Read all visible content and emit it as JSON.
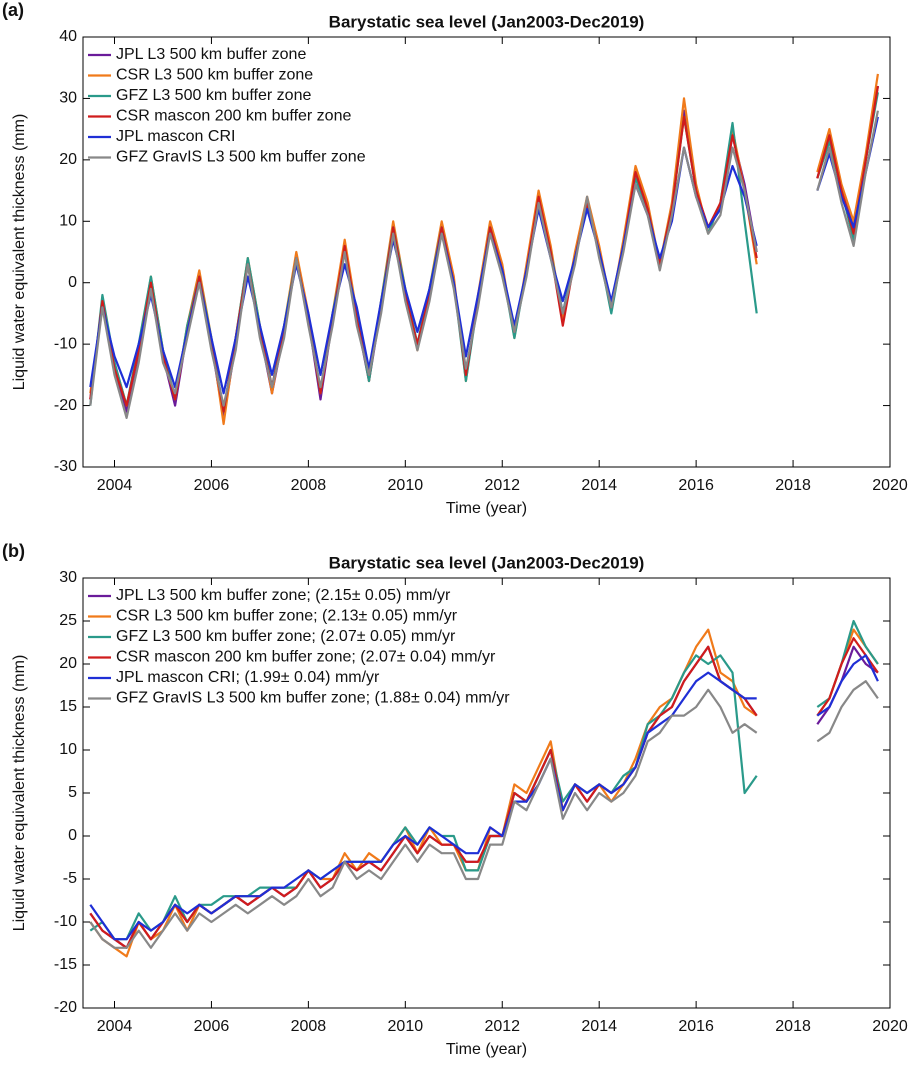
{
  "chart_data": [
    {
      "type": "line",
      "label": "(a)",
      "title": "Barystatic sea level (Jan2003-Dec2019)",
      "xlabel": "Time (year)",
      "ylabel": "Liquid water equivalent thickness (mm)",
      "xlim": [
        2003.35,
        2020
      ],
      "xticks": [
        2004,
        2006,
        2008,
        2010,
        2012,
        2014,
        2016,
        2018,
        2020
      ],
      "ylim": [
        -30,
        40
      ],
      "yticks": [
        -30,
        -20,
        -10,
        0,
        10,
        20,
        30,
        40
      ],
      "legend": "upper left",
      "x": [
        2003.5,
        2003.75,
        2004,
        2004.25,
        2004.5,
        2004.75,
        2005,
        2005.25,
        2005.5,
        2005.75,
        2006,
        2006.25,
        2006.5,
        2006.75,
        2007,
        2007.25,
        2007.5,
        2007.75,
        2008,
        2008.25,
        2008.5,
        2008.75,
        2009,
        2009.25,
        2009.5,
        2009.75,
        2010,
        2010.25,
        2010.5,
        2010.75,
        2011,
        2011.25,
        2011.5,
        2011.75,
        2012,
        2012.25,
        2012.5,
        2012.75,
        2013,
        2013.25,
        2013.5,
        2013.75,
        2014,
        2014.25,
        2014.5,
        2014.75,
        2015,
        2015.25,
        2015.5,
        2015.75,
        2016,
        2016.25,
        2016.5,
        2016.75,
        2017,
        2017.25,
        2017.5,
        2017.75,
        2018,
        2018.25,
        2018.5,
        2018.75,
        2019,
        2019.25,
        2019.5,
        2019.75
      ],
      "series": [
        {
          "name": "JPL L3 500 km buffer zone",
          "color": "#6a1b9a",
          "values": [
            -19,
            -3,
            -14,
            -21,
            -12,
            0,
            -12,
            -20,
            -8,
            1,
            -10,
            -22,
            -10,
            3,
            -8,
            -18,
            -8,
            4,
            -6,
            -19,
            -6,
            5,
            -6,
            -16,
            -4,
            9,
            -2,
            -10,
            -2,
            9,
            0,
            -15,
            -3,
            9,
            2,
            -8,
            2,
            14,
            5,
            -5,
            4,
            13,
            5,
            -4,
            6,
            18,
            12,
            3,
            12,
            28,
            15,
            9,
            12,
            24,
            16,
            5,
            null,
            null,
            null,
            null,
            17,
            24,
            15,
            9,
            20,
            32
          ]
        },
        {
          "name": "CSR L3 500 km buffer zone",
          "color": "#f07a1a",
          "values": [
            -18,
            -4,
            -13,
            -20,
            -11,
            1,
            -11,
            -19,
            -7,
            2,
            -9,
            -23,
            -9,
            4,
            -7,
            -18,
            -7,
            5,
            -5,
            -18,
            -5,
            7,
            -5,
            -16,
            -3,
            10,
            -1,
            -11,
            -1,
            10,
            1,
            -16,
            -2,
            10,
            3,
            -9,
            3,
            15,
            6,
            -6,
            5,
            14,
            6,
            -4,
            7,
            19,
            13,
            3,
            13,
            30,
            16,
            8,
            13,
            25,
            15,
            3,
            null,
            null,
            null,
            null,
            18,
            25,
            16,
            10,
            21,
            34
          ]
        },
        {
          "name": "GFZ L3 500 km buffer zone",
          "color": "#2a9a8a",
          "values": [
            -20,
            -2,
            -13,
            -20,
            -10,
            1,
            -11,
            -19,
            -7,
            1,
            -9,
            -21,
            -9,
            4,
            -7,
            -17,
            -7,
            4,
            -6,
            -18,
            -5,
            5,
            -5,
            -16,
            -3,
            9,
            -1,
            -10,
            -1,
            9,
            0,
            -16,
            -3,
            9,
            2,
            -9,
            2,
            13,
            5,
            -5,
            4,
            13,
            5,
            -5,
            6,
            17,
            12,
            3,
            12,
            27,
            15,
            8,
            13,
            26,
            10,
            -5,
            null,
            null,
            null,
            null,
            17,
            23,
            15,
            7,
            20,
            31
          ]
        },
        {
          "name": "CSR mascon 200 km buffer zone",
          "color": "#d01c1c",
          "values": [
            -19,
            -3,
            -14,
            -20,
            -11,
            0,
            -12,
            -19,
            -8,
            1,
            -10,
            -21,
            -9,
            3,
            -8,
            -17,
            -8,
            4,
            -6,
            -18,
            -6,
            6,
            -6,
            -15,
            -4,
            9,
            -2,
            -10,
            -2,
            9,
            0,
            -15,
            -3,
            9,
            2,
            -8,
            2,
            14,
            5,
            -7,
            4,
            13,
            5,
            -4,
            6,
            18,
            12,
            3,
            12,
            27,
            15,
            9,
            13,
            24,
            15,
            4,
            null,
            null,
            null,
            null,
            17,
            24,
            15,
            8,
            20,
            32
          ]
        },
        {
          "name": "JPL mascon CRI",
          "color": "#1f2fd6",
          "values": [
            -17,
            -4,
            -12,
            -17,
            -10,
            -2,
            -11,
            -17,
            -8,
            0,
            -9,
            -18,
            -9,
            1,
            -7,
            -15,
            -7,
            3,
            -5,
            -15,
            -5,
            3,
            -4,
            -14,
            -3,
            7,
            -1,
            -8,
            -1,
            8,
            0,
            -12,
            -2,
            8,
            2,
            -7,
            2,
            12,
            4,
            -3,
            4,
            12,
            5,
            -3,
            6,
            16,
            11,
            4,
            10,
            22,
            14,
            9,
            12,
            19,
            14,
            6,
            null,
            null,
            null,
            null,
            15,
            21,
            14,
            9,
            18,
            27
          ]
        },
        {
          "name": "GFZ GravIS L3 500 km buffer zone",
          "color": "#888888",
          "values": [
            -20,
            -4,
            -15,
            -22,
            -13,
            -1,
            -13,
            -18,
            -9,
            0,
            -11,
            -20,
            -11,
            3,
            -9,
            -17,
            -9,
            4,
            -7,
            -17,
            -7,
            5,
            -7,
            -15,
            -5,
            8,
            -3,
            -11,
            -3,
            8,
            -1,
            -14,
            -4,
            8,
            1,
            -8,
            1,
            13,
            4,
            -5,
            3,
            14,
            4,
            -4,
            5,
            16,
            11,
            2,
            11,
            22,
            14,
            8,
            11,
            22,
            15,
            5,
            null,
            null,
            null,
            null,
            15,
            22,
            13,
            6,
            18,
            28
          ]
        }
      ]
    },
    {
      "type": "line",
      "label": "(b)",
      "title": "Barystatic sea level (Jan2003-Dec2019)",
      "xlabel": "Time (year)",
      "ylabel": "Liquid water equivalent thickness (mm)",
      "xlim": [
        2003.35,
        2020
      ],
      "xticks": [
        2004,
        2006,
        2008,
        2010,
        2012,
        2014,
        2016,
        2018,
        2020
      ],
      "ylim": [
        -20,
        30
      ],
      "yticks": [
        -20,
        -15,
        -10,
        -5,
        0,
        5,
        10,
        15,
        20,
        25,
        30
      ],
      "legend": "upper left",
      "x": [
        2003.5,
        2003.75,
        2004,
        2004.25,
        2004.5,
        2004.75,
        2005,
        2005.25,
        2005.5,
        2005.75,
        2006,
        2006.25,
        2006.5,
        2006.75,
        2007,
        2007.25,
        2007.5,
        2007.75,
        2008,
        2008.25,
        2008.5,
        2008.75,
        2009,
        2009.25,
        2009.5,
        2009.75,
        2010,
        2010.25,
        2010.5,
        2010.75,
        2011,
        2011.25,
        2011.5,
        2011.75,
        2012,
        2012.25,
        2012.5,
        2012.75,
        2013,
        2013.25,
        2013.5,
        2013.75,
        2014,
        2014.25,
        2014.5,
        2014.75,
        2015,
        2015.25,
        2015.5,
        2015.75,
        2016,
        2016.25,
        2016.5,
        2016.75,
        2017,
        2017.25,
        2017.5,
        2017.75,
        2018,
        2018.25,
        2018.5,
        2018.75,
        2019,
        2019.25,
        2019.5,
        2019.75
      ],
      "series": [
        {
          "name": "JPL L3 500 km buffer zone; (2.15± 0.05) mm/yr",
          "color": "#6a1b9a",
          "values": [
            -9,
            -11,
            -12,
            -13,
            -10,
            -12,
            -10,
            -8,
            -10,
            -8,
            -9,
            -8,
            -7,
            -8,
            -7,
            -6,
            -7,
            -6,
            -4,
            -6,
            -5,
            -3,
            -4,
            -3,
            -4,
            -2,
            0,
            -2,
            0,
            -1,
            -1,
            -3,
            -3,
            0,
            0,
            5,
            4,
            7,
            10,
            3,
            6,
            4,
            6,
            5,
            6,
            8,
            12,
            14,
            15,
            18,
            20,
            22,
            18,
            17,
            16,
            14,
            null,
            null,
            null,
            null,
            13,
            15,
            18,
            22,
            20,
            19
          ]
        },
        {
          "name": "CSR L3 500 km buffer zone; (2.13± 0.05) mm/yr",
          "color": "#f07a1a",
          "values": [
            -10,
            -12,
            -13,
            -14,
            -10,
            -12,
            -11,
            -8,
            -11,
            -8,
            -9,
            -8,
            -7,
            -7,
            -7,
            -6,
            -6,
            -6,
            -4,
            -5,
            -5,
            -2,
            -4,
            -2,
            -3,
            -1,
            1,
            -2,
            1,
            -1,
            -1,
            -4,
            -4,
            1,
            0,
            6,
            5,
            8,
            11,
            3,
            6,
            5,
            6,
            4,
            6,
            9,
            13,
            15,
            16,
            19,
            22,
            24,
            19,
            18,
            15,
            14,
            null,
            null,
            null,
            null,
            14,
            16,
            20,
            24,
            22,
            20
          ]
        },
        {
          "name": "GFZ L3 500 km buffer zone; (2.07± 0.05) mm/yr",
          "color": "#2a9a8a",
          "values": [
            -11,
            -10,
            -12,
            -12,
            -9,
            -11,
            -10,
            -7,
            -10,
            -8,
            -8,
            -7,
            -7,
            -7,
            -6,
            -6,
            -6,
            -6,
            -4,
            -5,
            -4,
            -3,
            -3,
            -3,
            -3,
            -1,
            1,
            -1,
            1,
            0,
            0,
            -4,
            -4,
            0,
            0,
            5,
            4,
            7,
            10,
            4,
            6,
            5,
            6,
            5,
            7,
            8,
            13,
            14,
            16,
            19,
            21,
            20,
            21,
            19,
            5,
            7,
            null,
            null,
            null,
            null,
            15,
            16,
            20,
            25,
            22,
            20
          ]
        },
        {
          "name": "CSR mascon 200 km buffer zone; (2.07± 0.04) mm/yr",
          "color": "#d01c1c",
          "values": [
            -9,
            -11,
            -12,
            -13,
            -10,
            -12,
            -10,
            -8,
            -10,
            -8,
            -9,
            -8,
            -7,
            -8,
            -7,
            -6,
            -7,
            -6,
            -4,
            -6,
            -5,
            -3,
            -4,
            -3,
            -4,
            -2,
            0,
            -2,
            0,
            -1,
            -1,
            -3,
            -3,
            0,
            0,
            5,
            4,
            7,
            10,
            3,
            6,
            4,
            6,
            5,
            6,
            8,
            12,
            14,
            15,
            18,
            20,
            22,
            18,
            17,
            16,
            14,
            null,
            null,
            null,
            null,
            14,
            16,
            20,
            23,
            21,
            19
          ]
        },
        {
          "name": "JPL mascon CRI; (1.99± 0.04) mm/yr",
          "color": "#1f2fd6",
          "values": [
            -8,
            -10,
            -12,
            -12,
            -10,
            -11,
            -10,
            -8,
            -9,
            -8,
            -9,
            -8,
            -7,
            -7,
            -7,
            -6,
            -6,
            -5,
            -4,
            -5,
            -4,
            -3,
            -3,
            -3,
            -3,
            -1,
            0,
            -1,
            1,
            0,
            -1,
            -2,
            -2,
            1,
            0,
            4,
            4,
            6,
            9,
            3,
            6,
            5,
            6,
            5,
            6,
            8,
            12,
            13,
            14,
            16,
            18,
            19,
            18,
            17,
            16,
            16,
            null,
            null,
            null,
            null,
            14,
            15,
            18,
            20,
            21,
            18
          ]
        },
        {
          "name": "GFZ GravIS L3 500 km buffer zone; (1.88± 0.04) mm/yr",
          "color": "#888888",
          "values": [
            -10,
            -12,
            -13,
            -13,
            -11,
            -13,
            -11,
            -9,
            -11,
            -9,
            -10,
            -9,
            -8,
            -9,
            -8,
            -7,
            -8,
            -7,
            -5,
            -7,
            -6,
            -3,
            -5,
            -4,
            -5,
            -3,
            -1,
            -3,
            -1,
            -2,
            -2,
            -5,
            -5,
            -1,
            -1,
            4,
            3,
            6,
            9,
            2,
            5,
            3,
            5,
            4,
            5,
            7,
            11,
            12,
            14,
            14,
            15,
            17,
            15,
            12,
            13,
            12,
            null,
            null,
            null,
            null,
            11,
            12,
            15,
            17,
            18,
            16
          ]
        }
      ]
    }
  ]
}
